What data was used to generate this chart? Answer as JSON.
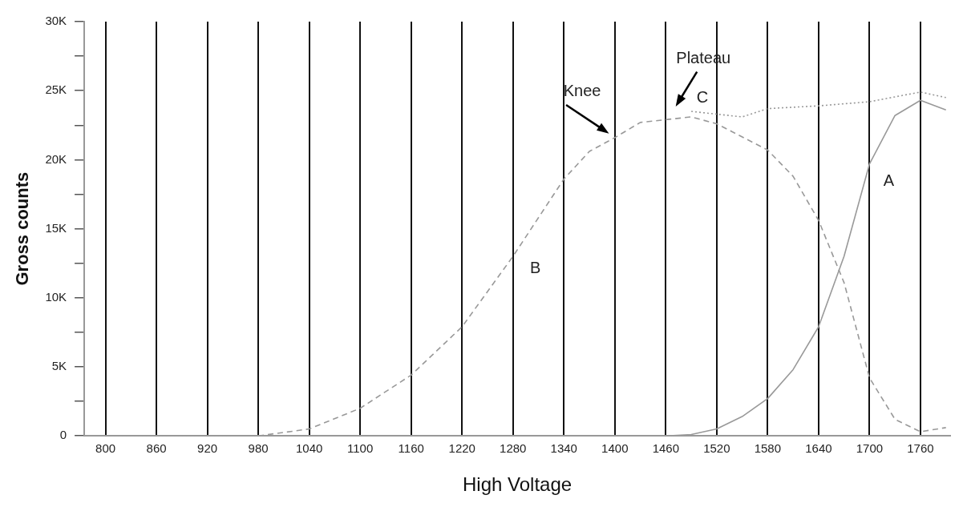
{
  "chart_data": {
    "type": "line",
    "xlabel": "High Voltage",
    "ylabel": "Gross counts",
    "xlim": [
      775,
      1795
    ],
    "xticks": [
      800,
      860,
      920,
      980,
      1040,
      1100,
      1160,
      1220,
      1280,
      1340,
      1400,
      1460,
      1520,
      1580,
      1640,
      1700,
      1760
    ],
    "ylim": [
      0,
      30000
    ],
    "yticks": [
      0,
      {
        "value": 2500,
        "label": null
      },
      {
        "value": 5000,
        "label": "5K"
      },
      {
        "value": 7500,
        "label": null
      },
      {
        "value": 10000,
        "label": "10K"
      },
      {
        "value": 12500,
        "label": null
      },
      {
        "value": 15000,
        "label": "15K"
      },
      {
        "value": 17500,
        "label": null
      },
      {
        "value": 20000,
        "label": "20K"
      },
      {
        "value": 22500,
        "label": null
      },
      {
        "value": 25000,
        "label": "25K"
      },
      {
        "value": 27500,
        "label": null
      },
      {
        "value": 30000,
        "label": "30K"
      }
    ],
    "grid": "x",
    "legend": false,
    "marker": "none",
    "series": [
      {
        "name": "A",
        "color": "#999999",
        "line_style": "solid",
        "x": [
          980,
          1400,
          1460,
          1490,
          1520,
          1550,
          1580,
          1610,
          1640,
          1670,
          1700,
          1730,
          1760,
          1790
        ],
        "values": [
          0,
          0,
          0,
          100,
          500,
          1400,
          2700,
          4800,
          7900,
          13000,
          19700,
          23200,
          24300,
          23600
        ]
      },
      {
        "name": "B",
        "color": "#999999",
        "line_style": "dashed",
        "x": [
          980,
          1040,
          1100,
          1160,
          1220,
          1280,
          1340,
          1370,
          1400,
          1430,
          1460,
          1490,
          1520,
          1580,
          1610,
          1640,
          1670,
          1700,
          1730,
          1760,
          1790
        ],
        "values": [
          0,
          500,
          2000,
          4400,
          7900,
          13000,
          18600,
          20600,
          21600,
          22700,
          22900,
          23100,
          22600,
          20700,
          18800,
          15600,
          11100,
          4200,
          1200,
          300,
          600
        ]
      },
      {
        "name": "C",
        "color": "#999999",
        "line_style": "dotted",
        "x": [
          800,
          830,
          860,
          890,
          920,
          950,
          980,
          1460,
          1490,
          1520,
          1550,
          1580,
          1640,
          1700,
          1760,
          1790
        ],
        "values": [
          0,
          0,
          0,
          0,
          0,
          0,
          null,
          null,
          23500,
          23300,
          23100,
          23700,
          23900,
          24200,
          24900,
          24500
        ]
      }
    ],
    "annotations": [
      "Knee",
      "Plateau"
    ]
  }
}
